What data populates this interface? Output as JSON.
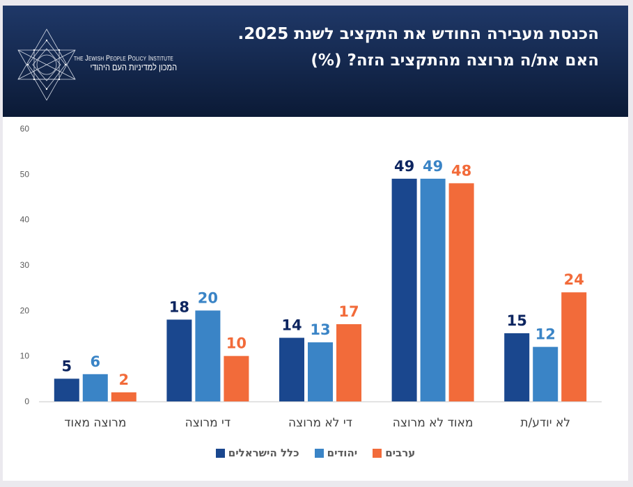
{
  "header": {
    "title": "הכנסת מעבירה החודש את התקציב לשנת 2025. האם את/ה מרוצה מהתקציב הזה? (%)",
    "logo_en": "the Jewish People Policy Institute",
    "logo_he": "המכון למדיניות העם היהודי"
  },
  "colors": {
    "header_top": "#1f3868",
    "header_bottom": "#0b1a36",
    "all_israelis": "#1a478e",
    "jews": "#3a84c6",
    "arabs": "#f26b3a",
    "all_israelis_label": "#0d2560",
    "axis_text": "#595959",
    "category_text": "#404040"
  },
  "chart_data": {
    "type": "bar",
    "title": "הכנסת מעבירה החודש את התקציב לשנת 2025. האם את/ה מרוצה מהתקציב הזה? (%)",
    "xlabel": "",
    "ylabel": "",
    "ylim": [
      0,
      60
    ],
    "yticks": [
      0,
      10,
      20,
      30,
      40,
      50,
      60
    ],
    "grid": false,
    "legend_position": "bottom",
    "categories": [
      "מרוצה מאוד",
      "די מרוצה",
      "די לא מרוצה",
      "מאוד לא מרוצה",
      "לא יודע/ת"
    ],
    "series": [
      {
        "name": "כלל הישראלים",
        "key": "all_israelis",
        "values": [
          5,
          18,
          14,
          49,
          15
        ]
      },
      {
        "name": "יהודים",
        "key": "jews",
        "values": [
          6,
          20,
          13,
          49,
          12
        ]
      },
      {
        "name": "ערבים",
        "key": "arabs",
        "values": [
          2,
          10,
          17,
          48,
          24
        ]
      }
    ]
  }
}
